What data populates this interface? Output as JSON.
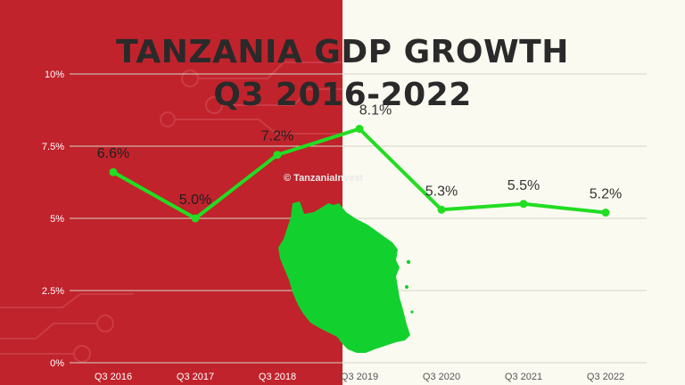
{
  "title_line1": "TANZANIA GDP GROWTH",
  "title_line2": "Q3 2016-2022",
  "watermark": "© TanzaniaInvest",
  "colors": {
    "left_bg": "#c0232c",
    "right_bg": "#fbfaf1",
    "line": "#22dd22",
    "map": "#12d12f",
    "grid": "#d4d4c8"
  },
  "chart_data": {
    "type": "line",
    "categories": [
      "Q3 2016",
      "Q3 2017",
      "Q3 2018",
      "Q3 2019",
      "Q3 2020",
      "Q3 2021",
      "Q3 2022"
    ],
    "series": [
      {
        "values": [
          6.6,
          5.0,
          7.2,
          8.1,
          5.3,
          5.5,
          5.2
        ]
      }
    ],
    "data_labels": [
      "6.6%",
      "5.0%",
      "7.2%",
      "8.1%",
      "5.3%",
      "5.5%",
      "5.2%"
    ],
    "y_ticks": [
      0,
      2.5,
      5,
      7.5,
      10
    ],
    "y_tick_labels": [
      "0%",
      "2.5%",
      "5%",
      "7.5%",
      "10%"
    ],
    "ylim": [
      0,
      10
    ],
    "grid": true
  }
}
